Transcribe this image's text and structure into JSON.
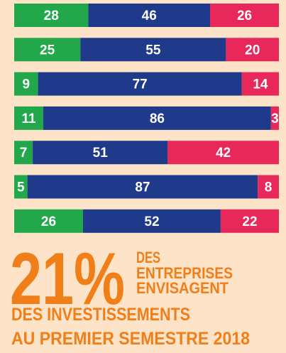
{
  "chart_data": {
    "type": "bar",
    "orientation": "horizontal",
    "stacked": true,
    "xlim": [
      0,
      100
    ],
    "series": [
      {
        "color": "#22a84a",
        "values": [
          28,
          25,
          9,
          11,
          7,
          5,
          26
        ]
      },
      {
        "color": "#1f3a8a",
        "values": [
          46,
          55,
          77,
          86,
          51,
          87,
          52
        ]
      },
      {
        "color": "#e8285a",
        "values": [
          26,
          20,
          14,
          3,
          42,
          8,
          22
        ]
      }
    ]
  },
  "callout": {
    "figure": "21%",
    "side_lines": [
      "DES",
      "ENTREPRISES",
      "ENVISAGENT"
    ],
    "bottom_lines": [
      "DES INVESTISSEMENTS",
      "AU PREMIER SEMESTRE 2018"
    ]
  }
}
